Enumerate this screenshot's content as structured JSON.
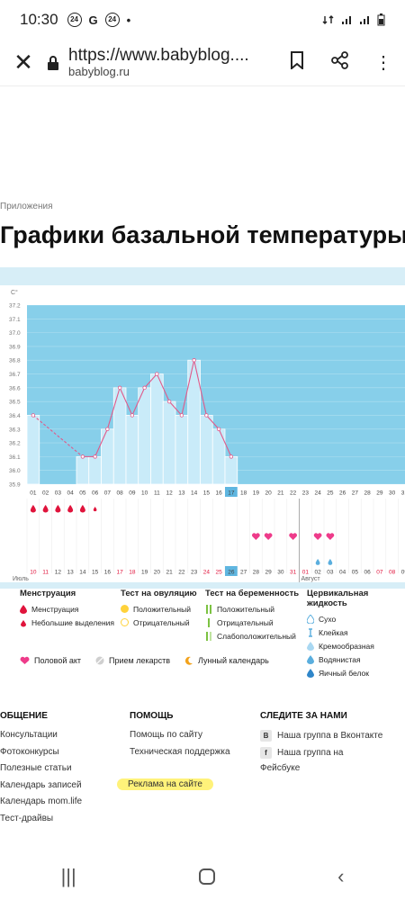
{
  "status": {
    "time": "10:30",
    "icons": [
      "24",
      "G",
      "24",
      "•"
    ]
  },
  "browser": {
    "url": "https://www.babyblog....",
    "host": "babyblog.ru"
  },
  "page": {
    "breadcrumb": "Приложения",
    "title": "Графики базальной температуры"
  },
  "chart_data": {
    "type": "bar",
    "ylabel": "С°",
    "ylim": [
      35.9,
      37.2
    ],
    "yticks": [
      "37.2",
      "37.1",
      "37.0",
      "36.9",
      "36.8",
      "36.7",
      "36.6",
      "36.5",
      "36.4",
      "36.3",
      "36.2",
      "36.1",
      "36.0",
      "35.9"
    ],
    "days": [
      "01",
      "02",
      "03",
      "04",
      "05",
      "06",
      "07",
      "08",
      "09",
      "10",
      "11",
      "12",
      "13",
      "14",
      "15",
      "16",
      "17",
      "18",
      "19",
      "20",
      "21",
      "22",
      "23",
      "24",
      "25",
      "26",
      "27",
      "28",
      "29",
      "30",
      "31"
    ],
    "values": [
      36.4,
      null,
      null,
      null,
      36.1,
      36.1,
      36.3,
      36.6,
      36.4,
      36.6,
      36.7,
      36.5,
      36.4,
      36.8,
      36.4,
      36.3,
      36.1,
      null,
      null,
      null,
      null,
      null,
      null,
      null,
      null,
      null,
      null,
      null,
      null,
      null,
      null
    ],
    "highlight_day": "17",
    "dates_row": [
      "10",
      "11",
      "12",
      "13",
      "14",
      "15",
      "16",
      "17",
      "18",
      "19",
      "20",
      "21",
      "22",
      "23",
      "24",
      "25",
      "26",
      "27",
      "28",
      "29",
      "30",
      "31",
      "01",
      "02",
      "03",
      "04",
      "05",
      "06",
      "07",
      "08",
      "09"
    ],
    "red_dates": [
      "10",
      "11",
      "17",
      "18",
      "24",
      "25",
      "31",
      "01",
      "07",
      "08"
    ],
    "highlight_date": "26",
    "month_labels": {
      "left": "Июль",
      "right": "Август"
    },
    "menstruation_days": 6,
    "heart_days": [
      "19",
      "20",
      "22",
      "24",
      "25"
    ],
    "drop_days": [
      "24",
      "25"
    ]
  },
  "legend": {
    "menstruation": {
      "title": "Менструация",
      "items": [
        "Менструация",
        "Небольшие выделения"
      ]
    },
    "ovulation": {
      "title": "Тест на овуляцию",
      "items": [
        "Положительный",
        "Отрицательный"
      ]
    },
    "pregnancy": {
      "title": "Тест на беременность",
      "items": [
        "Положительный",
        "Отрицательный",
        "Слабоположительный"
      ]
    },
    "cervical": {
      "title": "Цервикальная жидкость",
      "items": [
        "Сухо",
        "Клейкая",
        "Кремообразная",
        "Водянистая",
        "Яичный белок"
      ]
    },
    "extra": [
      "Половой акт",
      "Прием лекарств",
      "Лунный календарь"
    ]
  },
  "footer": {
    "col1": {
      "title": "ОБЩЕНИЕ",
      "items": [
        "Консультации",
        "Фотоконкурсы",
        "Полезные статьи",
        "Календарь записей",
        "Календарь mom.life",
        "Тест-драйвы"
      ]
    },
    "col2": {
      "title": "ПОМОЩЬ",
      "items": [
        "Помощь по сайту",
        "Техническая поддержка"
      ],
      "ad": "Реклама на сайте"
    },
    "col3": {
      "title": "СЛЕДИТЕ ЗА НАМИ",
      "vk": "Наша группа в Вконтакте",
      "fb1": "Наша группа на",
      "fb2": "Фейсбуке"
    }
  },
  "colors": {
    "area": "#87cfea",
    "bar": "#c9ebf9",
    "line": "#e05a8a",
    "red": "#e0143c",
    "pink": "#ee3b8a"
  }
}
